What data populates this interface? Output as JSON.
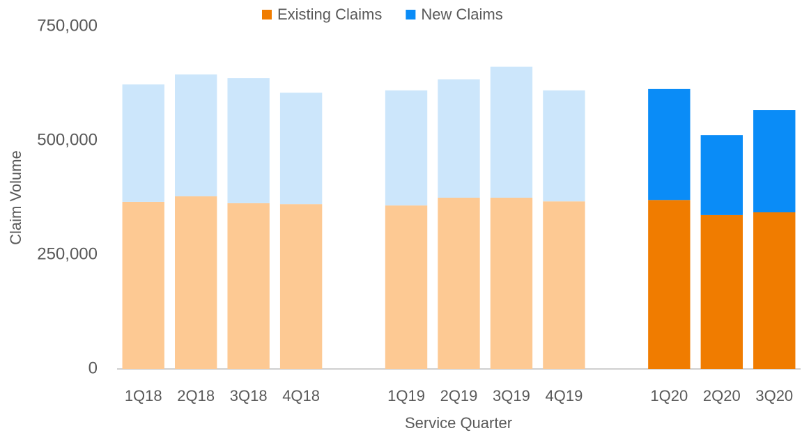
{
  "chart_data": {
    "type": "stacked_bar",
    "xlabel": "Service Quarter",
    "ylabel": "Claim Volume",
    "categories": [
      "1Q18",
      "2Q18",
      "3Q18",
      "4Q18",
      null,
      "1Q19",
      "2Q19",
      "3Q19",
      "4Q19",
      null,
      "1Q20",
      "2Q20",
      "3Q20"
    ],
    "series": [
      {
        "name": "Existing Claims",
        "color": "#f07c00",
        "point_colors": [
          "#fdc993",
          "#fdc993",
          "#fdc993",
          "#fdc993",
          null,
          "#fdc993",
          "#fdc993",
          "#fdc993",
          "#fdc993",
          null,
          "#f07c00",
          "#f07c00",
          "#f07c00"
        ],
        "values": [
          366000,
          378000,
          363000,
          361000,
          null,
          358000,
          375000,
          375000,
          367000,
          null,
          370000,
          337000,
          343000
        ]
      },
      {
        "name": "New Claims",
        "color": "#0a8cf7",
        "point_colors": [
          "#cce6fb",
          "#cce6fb",
          "#cce6fb",
          "#cce6fb",
          null,
          "#cce6fb",
          "#cce6fb",
          "#cce6fb",
          "#cce6fb",
          null,
          "#0a8cf7",
          "#0a8cf7",
          "#0a8cf7"
        ],
        "values": [
          257000,
          267000,
          274000,
          244000,
          null,
          252000,
          259000,
          287000,
          243000,
          null,
          243000,
          175000,
          224000
        ]
      }
    ],
    "ylim": [
      0,
      750000
    ],
    "yticks": [
      0,
      {
        "value": 250000,
        "label": "250,000"
      },
      {
        "value": 500000,
        "label": "500,000"
      },
      {
        "value": 750000,
        "label": "750,000"
      }
    ],
    "grid": false,
    "legend": "top"
  }
}
